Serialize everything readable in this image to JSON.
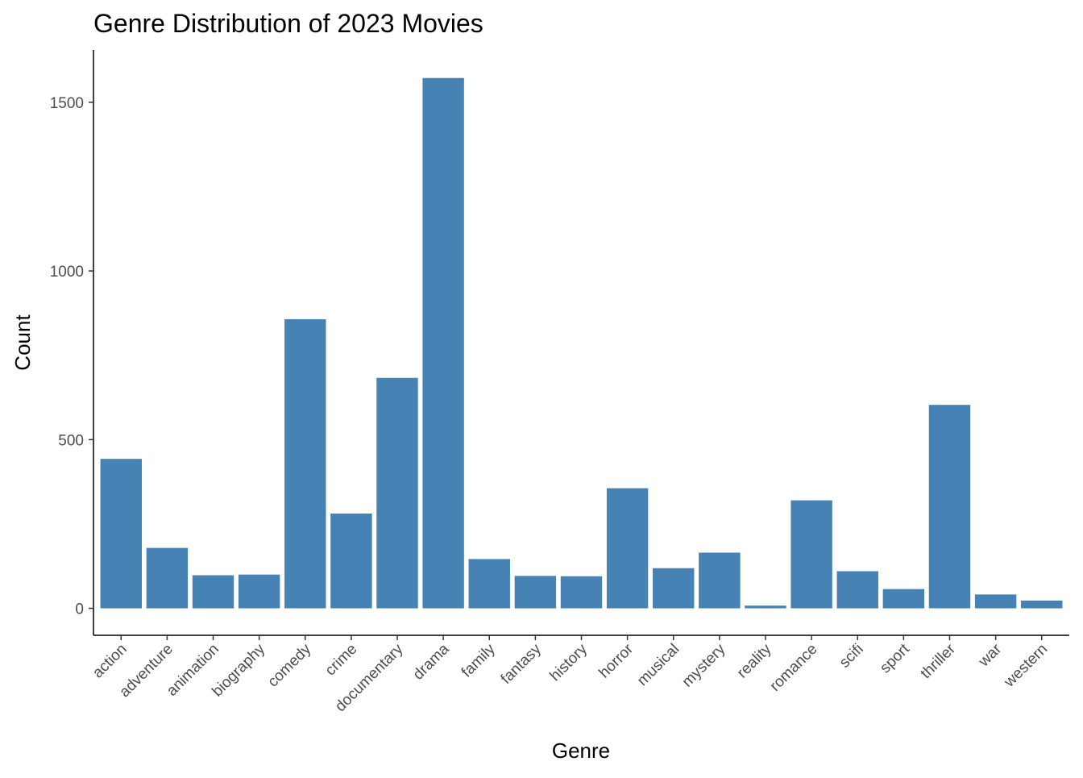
{
  "chart_data": {
    "type": "bar",
    "title": "Genre Distribution of 2023 Movies",
    "xlabel": "Genre",
    "ylabel": "Count",
    "categories": [
      "action",
      "adventure",
      "animation",
      "biography",
      "comedy",
      "crime",
      "documentary",
      "drama",
      "family",
      "fantasy",
      "history",
      "horror",
      "musical",
      "mystery",
      "reality",
      "romance",
      "scifi",
      "sport",
      "thriller",
      "war",
      "western"
    ],
    "values": [
      443,
      179,
      98,
      100,
      857,
      281,
      683,
      1572,
      146,
      96,
      95,
      356,
      119,
      165,
      8,
      320,
      110,
      57,
      603,
      41,
      23
    ],
    "ylim": [
      -80,
      1655
    ],
    "yticks": [
      0,
      500,
      1000,
      1500
    ],
    "bar_color": "#4682B4",
    "grid": false,
    "legend": "none"
  }
}
